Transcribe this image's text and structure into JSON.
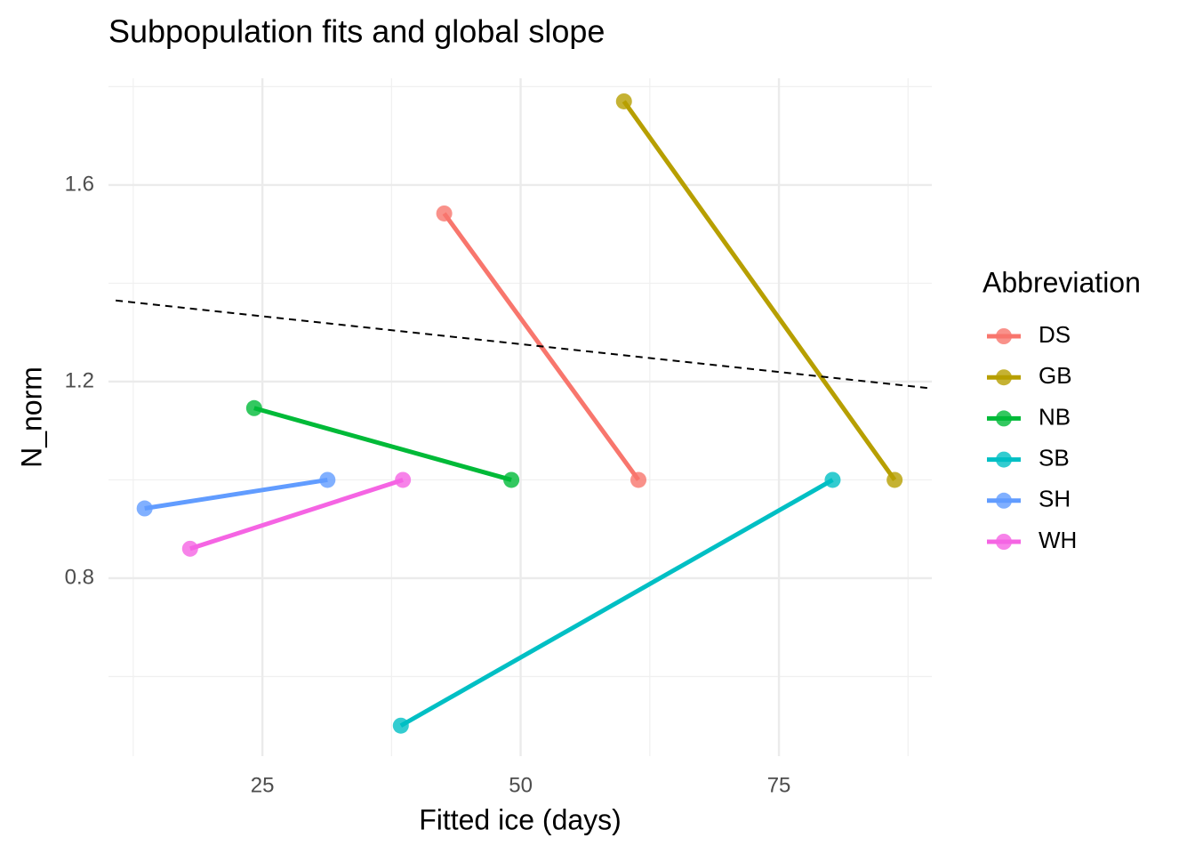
{
  "chart_data": {
    "type": "line",
    "title": "Subpopulation fits and global slope",
    "x_label": "Fitted ice (days)",
    "y_label": "N_norm",
    "legend_title": "Abbreviation",
    "legend_position": "right",
    "grid": true,
    "xlim": [
      10.1,
      89.8
    ],
    "ylim": [
      0.438,
      1.817
    ],
    "xticks": [
      25,
      50,
      75
    ],
    "yticks": [
      0.8,
      1.2,
      1.6
    ],
    "x_minor_grid": [
      12.5,
      37.5,
      62.5,
      87.5
    ],
    "y_minor_grid": [
      0.6,
      1.0,
      1.4,
      1.8
    ],
    "series": [
      {
        "name": "DS",
        "color": "#F8766D",
        "x": [
          42.6,
          61.4
        ],
        "values": [
          1.542,
          1.0
        ]
      },
      {
        "name": "GB",
        "color": "#B79F00",
        "x": [
          60.0,
          86.2
        ],
        "values": [
          1.77,
          1.0
        ]
      },
      {
        "name": "NB",
        "color": "#00BA38",
        "x": [
          24.2,
          49.1
        ],
        "values": [
          1.146,
          1.0
        ]
      },
      {
        "name": "SB",
        "color": "#00BFC4",
        "x": [
          38.4,
          80.2
        ],
        "values": [
          0.5,
          1.0
        ]
      },
      {
        "name": "SH",
        "color": "#619CFF",
        "x": [
          13.6,
          31.3
        ],
        "values": [
          0.942,
          1.0
        ]
      },
      {
        "name": "WH",
        "color": "#F564E3",
        "x": [
          18.0,
          38.6
        ],
        "values": [
          0.86,
          1.0
        ]
      }
    ],
    "reference_line": {
      "color": "#000000",
      "x": [
        10.8,
        89.8
      ],
      "values": [
        1.365,
        1.186
      ]
    }
  }
}
